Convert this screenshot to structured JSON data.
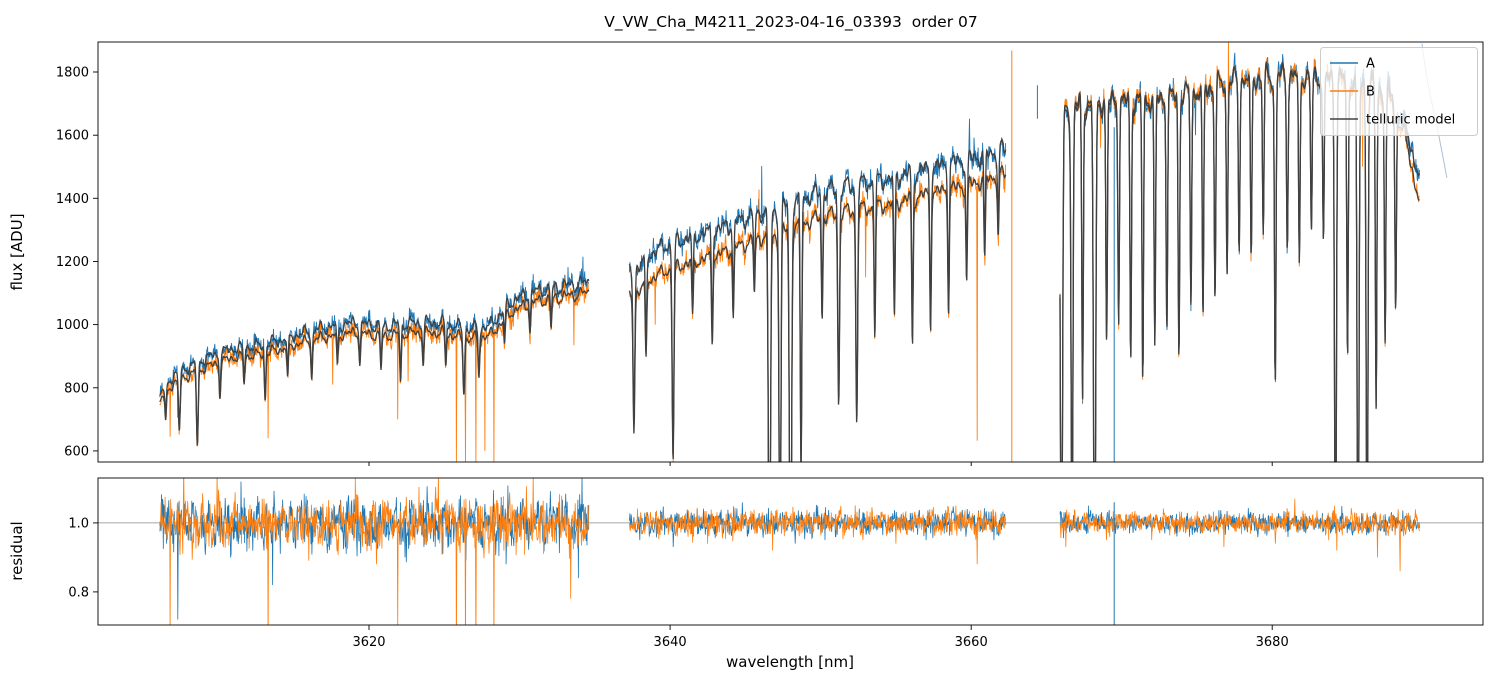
{
  "chart_data": {
    "type": "line",
    "title": "V_VW_Cha_M4211_2023-04-16_03393  order 07",
    "xlabel": "wavelength [nm]",
    "ylabel_top": "flux [ADU]",
    "ylabel_bottom": "residual",
    "x_range": [
      3602,
      3694
    ],
    "flux_range": [
      565,
      1895
    ],
    "flux_ticks": [
      600,
      800,
      1000,
      1200,
      1400,
      1600,
      1800
    ],
    "x_ticks": [
      3620,
      3640,
      3660,
      3680
    ],
    "residual_range": [
      0.704,
      1.13
    ],
    "residual_ticks": [
      {
        "v": 0.8,
        "label": "0.8"
      },
      {
        "v": 1.0,
        "label": "1.0"
      }
    ],
    "residual_reference": 1.0,
    "legend": [
      {
        "label": "A",
        "color": "#1f77b4"
      },
      {
        "label": "B",
        "color": "#ff7f0e"
      },
      {
        "label": "telluric model",
        "color": "#404040"
      }
    ],
    "segments": [
      {
        "range": [
          3606.1,
          3634.6
        ],
        "noise": 0.016,
        "residual_noise": 0.034,
        "residual_wiggle": 1.6,
        "A": [
          [
            3606.1,
            775
          ],
          [
            3607,
            840
          ],
          [
            3609,
            890
          ],
          [
            3611,
            925
          ],
          [
            3613,
            935
          ],
          [
            3615,
            965
          ],
          [
            3617,
            990
          ],
          [
            3619,
            1005
          ],
          [
            3621,
            995
          ],
          [
            3623,
            1005
          ],
          [
            3625,
            1005
          ],
          [
            3626.5,
            985
          ],
          [
            3628,
            995
          ],
          [
            3629.5,
            1075
          ],
          [
            3631,
            1105
          ],
          [
            3632.5,
            1118
          ],
          [
            3634.6,
            1135
          ]
        ],
        "B": [
          [
            3606.1,
            755
          ],
          [
            3607,
            815
          ],
          [
            3609,
            862
          ],
          [
            3611,
            896
          ],
          [
            3613,
            906
          ],
          [
            3615,
            936
          ],
          [
            3617,
            960
          ],
          [
            3619,
            974
          ],
          [
            3621,
            964
          ],
          [
            3623,
            974
          ],
          [
            3625,
            974
          ],
          [
            3626.5,
            954
          ],
          [
            3628,
            964
          ],
          [
            3629.5,
            1042
          ],
          [
            3631,
            1072
          ],
          [
            3632.5,
            1085
          ],
          [
            3634.6,
            1102
          ]
        ]
      },
      {
        "range": [
          3637.3,
          3662.3
        ],
        "noise": 0.013,
        "residual_noise": 0.018,
        "residual_wiggle": 0.55,
        "A": [
          [
            3637.3,
            1165
          ],
          [
            3639,
            1235
          ],
          [
            3641,
            1272
          ],
          [
            3643,
            1297
          ],
          [
            3645,
            1337
          ],
          [
            3646,
            1357
          ],
          [
            3647,
            1362
          ],
          [
            3648,
            1387
          ],
          [
            3650,
            1420
          ],
          [
            3652,
            1440
          ],
          [
            3654,
            1456
          ],
          [
            3656,
            1480
          ],
          [
            3658,
            1502
          ],
          [
            3660,
            1526
          ],
          [
            3662.3,
            1562
          ]
        ],
        "B": [
          [
            3637.3,
            1085
          ],
          [
            3639,
            1155
          ],
          [
            3641,
            1192
          ],
          [
            3643,
            1217
          ],
          [
            3645,
            1257
          ],
          [
            3646,
            1277
          ],
          [
            3647,
            1282
          ],
          [
            3648,
            1307
          ],
          [
            3650,
            1340
          ],
          [
            3652,
            1360
          ],
          [
            3654,
            1376
          ],
          [
            3656,
            1400
          ],
          [
            3658,
            1422
          ],
          [
            3660,
            1446
          ],
          [
            3662.3,
            1482
          ]
        ]
      },
      {
        "range": [
          3665.9,
          3689.8
        ],
        "noise": 0.01,
        "residual_noise": 0.015,
        "residual_wiggle": 0.45,
        "A": [
          [
            3665.9,
            1652
          ],
          [
            3667,
            1686
          ],
          [
            3669,
            1700
          ],
          [
            3671,
            1706
          ],
          [
            3673,
            1716
          ],
          [
            3675,
            1736
          ],
          [
            3677,
            1768
          ],
          [
            3679,
            1784
          ],
          [
            3681,
            1790
          ],
          [
            3683,
            1786
          ],
          [
            3685,
            1776
          ],
          [
            3686.5,
            1766
          ],
          [
            3688,
            1722
          ],
          [
            3689,
            1608
          ],
          [
            3689.8,
            1452
          ]
        ],
        "B": [
          [
            3665.9,
            1668
          ],
          [
            3667,
            1700
          ],
          [
            3669,
            1712
          ],
          [
            3671,
            1712
          ],
          [
            3673,
            1722
          ],
          [
            3675,
            1742
          ],
          [
            3677,
            1772
          ],
          [
            3679,
            1782
          ],
          [
            3681,
            1786
          ],
          [
            3683,
            1780
          ],
          [
            3685,
            1770
          ],
          [
            3686.5,
            1756
          ],
          [
            3688,
            1704
          ],
          [
            3689,
            1566
          ],
          [
            3689.8,
            1372
          ]
        ]
      }
    ],
    "telluric_lines": [
      [
        3606.5,
        0.12,
        0.05
      ],
      [
        3607.4,
        0.2,
        0.06
      ],
      [
        3608.6,
        0.28,
        0.06
      ],
      [
        3610.1,
        0.12,
        0.05
      ],
      [
        3611.7,
        0.1,
        0.05
      ],
      [
        3613.1,
        0.16,
        0.05
      ],
      [
        3614.6,
        0.12,
        0.05
      ],
      [
        3616.2,
        0.13,
        0.05
      ],
      [
        3617.9,
        0.11,
        0.05
      ],
      [
        3619.4,
        0.1,
        0.05
      ],
      [
        3620.8,
        0.12,
        0.05
      ],
      [
        3622.1,
        0.16,
        0.05
      ],
      [
        3623.6,
        0.1,
        0.05
      ],
      [
        3625.1,
        0.11,
        0.05
      ],
      [
        3626.3,
        0.18,
        0.06
      ],
      [
        3627.3,
        0.13,
        0.05
      ],
      [
        3629.0,
        0.08,
        0.05
      ],
      [
        3630.7,
        0.08,
        0.05
      ],
      [
        3632.1,
        0.09,
        0.05
      ],
      [
        3637.6,
        0.4,
        0.06
      ],
      [
        3638.4,
        0.22,
        0.05
      ],
      [
        3640.2,
        0.52,
        0.06
      ],
      [
        3641.5,
        0.15,
        0.05
      ],
      [
        3642.8,
        0.22,
        0.05
      ],
      [
        3644.2,
        0.18,
        0.05
      ],
      [
        3645.6,
        0.14,
        0.05
      ],
      [
        3646.6,
        0.93,
        0.07
      ],
      [
        3647.3,
        0.88,
        0.06
      ],
      [
        3648.0,
        0.96,
        0.07
      ],
      [
        3648.7,
        0.6,
        0.05
      ],
      [
        3650.1,
        0.24,
        0.05
      ],
      [
        3651.2,
        0.45,
        0.06
      ],
      [
        3652.4,
        0.5,
        0.06
      ],
      [
        3653.6,
        0.3,
        0.05
      ],
      [
        3654.9,
        0.27,
        0.05
      ],
      [
        3656.1,
        0.34,
        0.05
      ],
      [
        3657.3,
        0.3,
        0.05
      ],
      [
        3658.5,
        0.27,
        0.05
      ],
      [
        3659.7,
        0.22,
        0.05
      ],
      [
        3660.9,
        0.18,
        0.05
      ],
      [
        3661.8,
        0.14,
        0.05
      ],
      [
        3666.0,
        0.95,
        0.07
      ],
      [
        3666.7,
        0.85,
        0.06
      ],
      [
        3667.4,
        0.55,
        0.05
      ],
      [
        3668.2,
        0.97,
        0.07
      ],
      [
        3669.0,
        0.45,
        0.05
      ],
      [
        3669.8,
        0.4,
        0.05
      ],
      [
        3670.6,
        0.48,
        0.05
      ],
      [
        3671.4,
        0.52,
        0.05
      ],
      [
        3672.2,
        0.46,
        0.05
      ],
      [
        3673.0,
        0.42,
        0.05
      ],
      [
        3673.8,
        0.48,
        0.05
      ],
      [
        3674.6,
        0.38,
        0.05
      ],
      [
        3675.4,
        0.42,
        0.05
      ],
      [
        3676.2,
        0.38,
        0.05
      ],
      [
        3677.0,
        0.34,
        0.05
      ],
      [
        3677.8,
        0.3,
        0.05
      ],
      [
        3678.6,
        0.33,
        0.05
      ],
      [
        3679.4,
        0.28,
        0.05
      ],
      [
        3680.2,
        0.55,
        0.05
      ],
      [
        3681.0,
        0.3,
        0.05
      ],
      [
        3681.8,
        0.34,
        0.05
      ],
      [
        3682.6,
        0.28,
        0.05
      ],
      [
        3683.4,
        0.3,
        0.05
      ],
      [
        3684.2,
        0.95,
        0.06
      ],
      [
        3685.0,
        0.5,
        0.05
      ],
      [
        3685.7,
        0.97,
        0.06
      ],
      [
        3686.3,
        0.88,
        0.06
      ],
      [
        3686.9,
        0.58,
        0.05
      ],
      [
        3687.5,
        0.45,
        0.05
      ],
      [
        3688.2,
        0.38,
        0.05
      ]
    ],
    "spikes": [
      [
        3605.9,
        "B",
        595
      ],
      [
        3606.8,
        "B",
        645
      ],
      [
        3607.3,
        "A",
        705
      ],
      [
        3613.3,
        "B",
        640
      ],
      [
        3617.6,
        "B",
        810
      ],
      [
        3621.9,
        "B",
        700
      ],
      [
        3622.6,
        "B",
        820
      ],
      [
        3625.8,
        "B",
        560
      ],
      [
        3626.4,
        "B",
        560
      ],
      [
        3626.4,
        "A",
        700
      ],
      [
        3627.1,
        "B",
        560
      ],
      [
        3627.1,
        "A",
        760
      ],
      [
        3627.7,
        "B",
        600
      ],
      [
        3628.3,
        "B",
        560
      ],
      [
        3630.9,
        "A",
        1160
      ],
      [
        3633.6,
        "B",
        935
      ],
      [
        3634.2,
        "A",
        1215
      ],
      [
        3639.0,
        "B",
        1000
      ],
      [
        3645.9,
        "B",
        1428
      ],
      [
        3646.1,
        "A",
        1502
      ],
      [
        3653.0,
        "B",
        1150
      ],
      [
        3659.9,
        "A",
        1652
      ],
      [
        3660.4,
        "B",
        632
      ],
      [
        3668.6,
        "B",
        1560
      ],
      [
        3674.9,
        "A",
        1600
      ],
      [
        3677.1,
        "B",
        1900
      ],
      [
        3686.0,
        "B",
        1500
      ]
    ],
    "vlines": [
      [
        3662.7,
        "B",
        1868,
        560
      ],
      [
        3664.4,
        "A",
        1758,
        1652
      ],
      [
        3669.5,
        "A",
        1625,
        560
      ]
    ],
    "residual_vlines": [
      [
        3669.5,
        "A",
        1.06,
        0.6
      ]
    ],
    "residual_spikes": [
      [
        3605.9,
        "B",
        0.6
      ],
      [
        3606.8,
        "B",
        0.66
      ],
      [
        3607.3,
        "A",
        0.72
      ],
      [
        3607.7,
        "B",
        1.16
      ],
      [
        3609.9,
        "B",
        1.15
      ],
      [
        3610.8,
        "A",
        0.9
      ],
      [
        3611.5,
        "A",
        1.12
      ],
      [
        3613.3,
        "B",
        0.6
      ],
      [
        3613.6,
        "A",
        0.82
      ],
      [
        3616.0,
        "B",
        0.89
      ],
      [
        3618.5,
        "A",
        0.91
      ],
      [
        3619.1,
        "B",
        1.13
      ],
      [
        3620.5,
        "B",
        0.88
      ],
      [
        3621.9,
        "B",
        0.7
      ],
      [
        3622.4,
        "A",
        0.9
      ],
      [
        3624.6,
        "B",
        1.15
      ],
      [
        3624.9,
        "A",
        0.91
      ],
      [
        3625.8,
        "B",
        0.6
      ],
      [
        3626.4,
        "B",
        0.6
      ],
      [
        3627.1,
        "B",
        0.6
      ],
      [
        3628.3,
        "B",
        0.62
      ],
      [
        3629.1,
        "A",
        0.88
      ],
      [
        3630.9,
        "B",
        1.14
      ],
      [
        3631.6,
        "B",
        0.91
      ],
      [
        3633.4,
        "B",
        0.78
      ],
      [
        3633.9,
        "A",
        0.84
      ],
      [
        3638.0,
        "A",
        0.95
      ],
      [
        3640.2,
        "A",
        0.93
      ],
      [
        3642.5,
        "B",
        0.94
      ],
      [
        3644.8,
        "A",
        1.06
      ],
      [
        3646.8,
        "B",
        0.92
      ],
      [
        3648.3,
        "A",
        0.94
      ],
      [
        3650.3,
        "A",
        0.95
      ],
      [
        3652.8,
        "B",
        0.95
      ],
      [
        3655.0,
        "B",
        0.94
      ],
      [
        3657.0,
        "A",
        0.95
      ],
      [
        3659.0,
        "B",
        1.05
      ],
      [
        3660.4,
        "B",
        0.88
      ],
      [
        3661.5,
        "A",
        0.95
      ],
      [
        3666.3,
        "B",
        0.93
      ],
      [
        3667.8,
        "A",
        1.05
      ],
      [
        3669.0,
        "B",
        0.95
      ],
      [
        3672.0,
        "B",
        0.95
      ],
      [
        3674.5,
        "A",
        0.96
      ],
      [
        3676.8,
        "B",
        0.93
      ],
      [
        3680.2,
        "B",
        0.94
      ],
      [
        3681.5,
        "B",
        1.07
      ],
      [
        3684.3,
        "B",
        0.92
      ],
      [
        3687.0,
        "B",
        0.9
      ],
      [
        3688.5,
        "B",
        0.86
      ]
    ],
    "tail": {
      "color": "#a9c0d6",
      "points": [
        [
          3689.95,
          1890
        ],
        [
          3690.2,
          1800
        ],
        [
          3690.5,
          1725
        ],
        [
          3690.9,
          1640
        ],
        [
          3691.3,
          1540
        ],
        [
          3691.6,
          1465
        ]
      ]
    }
  }
}
